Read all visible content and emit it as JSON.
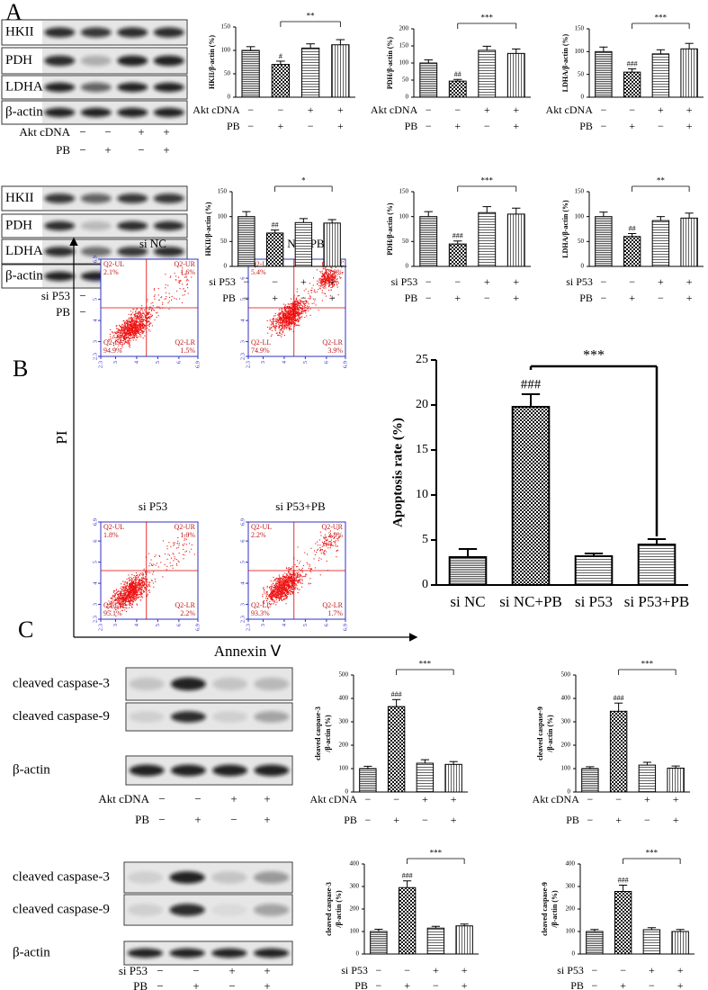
{
  "panels": [
    "A",
    "B",
    "C"
  ],
  "blots": [
    {
      "rows": [
        "HKII",
        "PDH",
        "LDHA",
        "β-actin"
      ],
      "conditions": [
        {
          "name": "Akt cDNA",
          "signs": [
            "−",
            "−",
            "+",
            "+"
          ]
        },
        {
          "name": "PB",
          "signs": [
            "−",
            "+",
            "−",
            "+"
          ]
        }
      ]
    },
    {
      "rows": [
        "HKII",
        "PDH",
        "LDHA",
        "β-actin"
      ],
      "conditions": [
        {
          "name": "si P53",
          "signs": [
            "−",
            "−",
            "+",
            "+"
          ]
        },
        {
          "name": "PB",
          "signs": [
            "−",
            "+",
            "−",
            "+"
          ]
        }
      ]
    },
    {
      "rows": [
        "cleaved caspase-3",
        "cleaved caspase-9",
        "β-actin"
      ],
      "conditions": [
        {
          "name": "Akt cDNA",
          "signs": [
            "−",
            "−",
            "+",
            "+"
          ]
        },
        {
          "name": "PB",
          "signs": [
            "−",
            "+",
            "−",
            "+"
          ]
        }
      ]
    },
    {
      "rows": [
        "cleaved caspase-3",
        "cleaved caspase-9",
        "β-actin"
      ],
      "conditions": [
        {
          "name": "si P53",
          "signs": [
            "−",
            "−",
            "+",
            "+"
          ]
        },
        {
          "name": "PB",
          "signs": [
            "−",
            "+",
            "−",
            "+"
          ]
        }
      ]
    }
  ],
  "flow": {
    "ylabel": "PI",
    "xlabel": "Annexin Ⅴ",
    "xlim": [
      2.3,
      6.9
    ],
    "xticks": [
      2.3,
      3,
      4,
      5,
      6,
      6.9
    ],
    "ylim": [
      2.3,
      6.9
    ],
    "yticks": [
      2.3,
      3,
      4,
      5,
      6,
      6.9
    ],
    "plots": [
      {
        "title": "si NC",
        "quadrants": [
          {
            "name": "Q2-UL",
            "value": "2.1%"
          },
          {
            "name": "Q2-UR",
            "value": "1.6%"
          },
          {
            "name": "Q2-LL",
            "value": "94.9%"
          },
          {
            "name": "Q2-LR",
            "value": "1.5%"
          }
        ]
      },
      {
        "title": "si NC+PB",
        "quadrants": [
          {
            "name": "Q2-UL",
            "value": "5.4%"
          },
          {
            "name": "Q2-UR",
            "value": "15.9%"
          },
          {
            "name": "Q2-LL",
            "value": "74.9%"
          },
          {
            "name": "Q2-LR",
            "value": "3.9%"
          }
        ]
      },
      {
        "title": "si P53",
        "quadrants": [
          {
            "name": "Q2-UL",
            "value": "1.8%"
          },
          {
            "name": "Q2-UR",
            "value": "1.0%"
          },
          {
            "name": "Q2-LL",
            "value": "95.1%"
          },
          {
            "name": "Q2-LR",
            "value": "2.2%"
          }
        ]
      },
      {
        "title": "si P53+PB",
        "quadrants": [
          {
            "name": "Q2-UL",
            "value": "2.2%"
          },
          {
            "name": "Q2-UR",
            "value": "2.8%"
          },
          {
            "name": "Q2-LL",
            "value": "93.3%"
          },
          {
            "name": "Q2-LR",
            "value": "1.7%"
          }
        ]
      }
    ]
  },
  "chart_data": [
    {
      "type": "bar",
      "ylabel": [
        "HKII/β-actin (%)"
      ],
      "ylim": [
        0,
        150
      ],
      "yticks": [
        0,
        50,
        100,
        150
      ],
      "values": [
        100,
        70,
        105,
        112
      ],
      "errors": [
        8,
        7,
        9,
        11
      ],
      "annotations": [
        {
          "text": "#",
          "at": 1
        }
      ],
      "comparison": {
        "text": "**",
        "from": 1,
        "to": 3
      },
      "conditions": [
        {
          "name": "Akt cDNA",
          "signs": [
            "−",
            "−",
            "+",
            "+"
          ]
        },
        {
          "name": "PB",
          "signs": [
            "−",
            "+",
            "−",
            "+"
          ]
        }
      ]
    },
    {
      "type": "bar",
      "ylabel": [
        "PDH/β-actin (%)"
      ],
      "ylim": [
        0,
        200
      ],
      "yticks": [
        0,
        50,
        100,
        150,
        200
      ],
      "values": [
        100,
        47,
        137,
        128
      ],
      "errors": [
        9,
        5,
        12,
        13
      ],
      "annotations": [
        {
          "text": "##",
          "at": 1
        }
      ],
      "comparison": {
        "text": "***",
        "from": 1,
        "to": 3
      },
      "conditions": [
        {
          "name": "Akt cDNA",
          "signs": [
            "−",
            "−",
            "+",
            "+"
          ]
        },
        {
          "name": "PB",
          "signs": [
            "−",
            "+",
            "−",
            "+"
          ]
        }
      ]
    },
    {
      "type": "bar",
      "ylabel": [
        "LDHA/β-actin (%)"
      ],
      "ylim": [
        0,
        150
      ],
      "yticks": [
        0,
        50,
        100,
        150
      ],
      "values": [
        100,
        55,
        95,
        106
      ],
      "errors": [
        10,
        7,
        9,
        12
      ],
      "annotations": [
        {
          "text": "###",
          "at": 1
        }
      ],
      "comparison": {
        "text": "***",
        "from": 1,
        "to": 3
      },
      "conditions": [
        {
          "name": "Akt cDNA",
          "signs": [
            "−",
            "−",
            "+",
            "+"
          ]
        },
        {
          "name": "PB",
          "signs": [
            "−",
            "+",
            "−",
            "+"
          ]
        }
      ]
    },
    {
      "type": "bar",
      "ylabel": [
        "HKII/β-actin (%)"
      ],
      "ylim": [
        0,
        150
      ],
      "yticks": [
        0,
        50,
        100,
        150
      ],
      "values": [
        100,
        67,
        88,
        87
      ],
      "errors": [
        10,
        6,
        8,
        7
      ],
      "annotations": [
        {
          "text": "##",
          "at": 1
        }
      ],
      "comparison": {
        "text": "*",
        "from": 1,
        "to": 3
      },
      "conditions": [
        {
          "name": "si P53",
          "signs": [
            "−",
            "−",
            "+",
            "+"
          ]
        },
        {
          "name": "PB",
          "signs": [
            "−",
            "+",
            "−",
            "+"
          ]
        }
      ]
    },
    {
      "type": "bar",
      "ylabel": [
        "PDH/β-actin (%)"
      ],
      "ylim": [
        0,
        150
      ],
      "yticks": [
        0,
        50,
        100,
        150
      ],
      "values": [
        100,
        45,
        108,
        105
      ],
      "errors": [
        10,
        6,
        12,
        12
      ],
      "annotations": [
        {
          "text": "###",
          "at": 1
        }
      ],
      "comparison": {
        "text": "***",
        "from": 1,
        "to": 3
      },
      "conditions": [
        {
          "name": "si P53",
          "signs": [
            "−",
            "−",
            "+",
            "+"
          ]
        },
        {
          "name": "PB",
          "signs": [
            "−",
            "+",
            "−",
            "+"
          ]
        }
      ]
    },
    {
      "type": "bar",
      "ylabel": [
        "LDHA/β-actin (%)"
      ],
      "ylim": [
        0,
        150
      ],
      "yticks": [
        0,
        50,
        100,
        150
      ],
      "values": [
        100,
        60,
        92,
        97
      ],
      "errors": [
        9,
        6,
        8,
        10
      ],
      "annotations": [
        {
          "text": "##",
          "at": 1
        }
      ],
      "comparison": {
        "text": "**",
        "from": 1,
        "to": 3
      },
      "conditions": [
        {
          "name": "si P53",
          "signs": [
            "−",
            "−",
            "+",
            "+"
          ]
        },
        {
          "name": "PB",
          "signs": [
            "−",
            "+",
            "−",
            "+"
          ]
        }
      ]
    },
    {
      "type": "bar",
      "ylabel": [
        "Apoptosis rate (%)"
      ],
      "ylim": [
        0,
        25
      ],
      "yticks": [
        0,
        5,
        10,
        15,
        20,
        25
      ],
      "categories": [
        "si NC",
        "si NC+PB",
        "si P53",
        "si P53+PB"
      ],
      "values": [
        3.1,
        19.8,
        3.2,
        4.5
      ],
      "errors": [
        0.9,
        1.4,
        0.3,
        0.6
      ],
      "annotations": [
        {
          "text": "###",
          "at": 1
        }
      ],
      "comparison": {
        "text": "***",
        "from": 1,
        "to": 3
      }
    },
    {
      "type": "bar",
      "ylabel": [
        "cleaved caspase-3",
        "/β-actin (%)"
      ],
      "ylim": [
        0,
        500
      ],
      "yticks": [
        0,
        100,
        200,
        300,
        400,
        500
      ],
      "values": [
        100,
        365,
        123,
        118
      ],
      "errors": [
        10,
        30,
        15,
        12
      ],
      "annotations": [
        {
          "text": "###",
          "at": 1
        }
      ],
      "comparison": {
        "text": "***",
        "from": 1,
        "to": 3
      },
      "conditions": [
        {
          "name": "Akt cDNA",
          "signs": [
            "−",
            "−",
            "+",
            "+"
          ]
        },
        {
          "name": "PB",
          "signs": [
            "−",
            "+",
            "−",
            "+"
          ]
        }
      ]
    },
    {
      "type": "bar",
      "ylabel": [
        "cleaved caspase-9",
        "/β-actin (%)"
      ],
      "ylim": [
        0,
        500
      ],
      "yticks": [
        0,
        100,
        200,
        300,
        400,
        500
      ],
      "values": [
        100,
        345,
        115,
        102
      ],
      "errors": [
        8,
        35,
        12,
        9
      ],
      "annotations": [
        {
          "text": "###",
          "at": 1
        }
      ],
      "comparison": {
        "text": "***",
        "from": 1,
        "to": 3
      },
      "conditions": [
        {
          "name": "Akt cDNA",
          "signs": [
            "−",
            "−",
            "+",
            "+"
          ]
        },
        {
          "name": "PB",
          "signs": [
            "−",
            "+",
            "−",
            "+"
          ]
        }
      ]
    },
    {
      "type": "bar",
      "ylabel": [
        "cleaved caspase-3",
        "/β-actin (%)"
      ],
      "ylim": [
        0,
        400
      ],
      "yticks": [
        0,
        100,
        200,
        300,
        400
      ],
      "values": [
        100,
        295,
        115,
        125
      ],
      "errors": [
        10,
        30,
        8,
        8
      ],
      "annotations": [
        {
          "text": "###",
          "at": 1
        }
      ],
      "comparison": {
        "text": "***",
        "from": 1,
        "to": 3
      },
      "conditions": [
        {
          "name": "si P53",
          "signs": [
            "−",
            "−",
            "+",
            "+"
          ]
        },
        {
          "name": "PB",
          "signs": [
            "−",
            "+",
            "−",
            "+"
          ]
        }
      ]
    },
    {
      "type": "bar",
      "ylabel": [
        "cleaved caspase-9",
        "/β-actin (%)"
      ],
      "ylim": [
        0,
        400
      ],
      "yticks": [
        0,
        100,
        200,
        300,
        400
      ],
      "values": [
        100,
        278,
        108,
        100
      ],
      "errors": [
        9,
        28,
        9,
        9
      ],
      "annotations": [
        {
          "text": "###",
          "at": 1
        }
      ],
      "comparison": {
        "text": "***",
        "from": 1,
        "to": 3
      },
      "conditions": [
        {
          "name": "si P53",
          "signs": [
            "−",
            "−",
            "+",
            "+"
          ]
        },
        {
          "name": "PB",
          "signs": [
            "−",
            "+",
            "−",
            "+"
          ]
        }
      ]
    }
  ]
}
